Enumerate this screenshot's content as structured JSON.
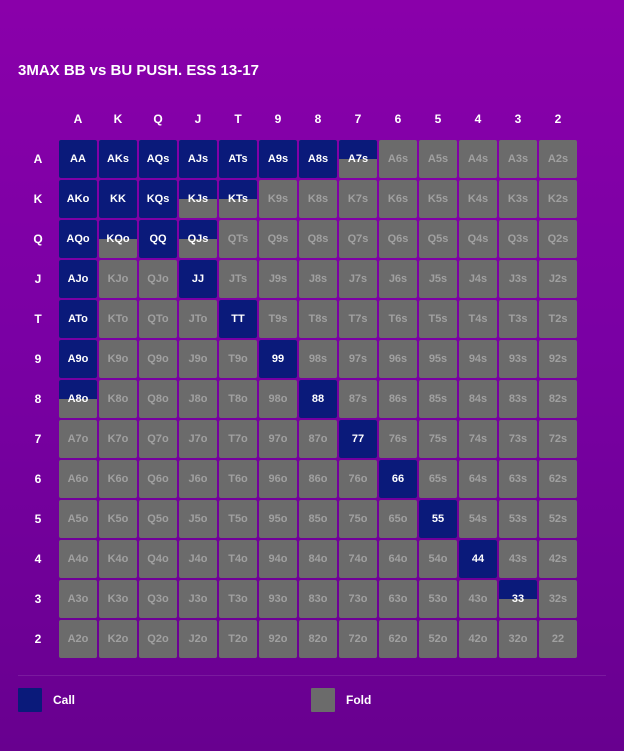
{
  "title": "3MAX BB vs BU PUSH. ESS 13-17",
  "colors": {
    "call": "#0a1a7a",
    "fold": "#6b6b6b",
    "fold_text": "#a0a0a0",
    "call_text": "#ffffff"
  },
  "chart_data": {
    "type": "heatmap",
    "ranks": [
      "A",
      "K",
      "Q",
      "J",
      "T",
      "9",
      "8",
      "7",
      "6",
      "5",
      "4",
      "3",
      "2"
    ],
    "cells": [
      [
        "AA",
        "AKs",
        "AQs",
        "AJs",
        "ATs",
        "A9s",
        "A8s",
        "A7s",
        "A6s",
        "A5s",
        "A4s",
        "A3s",
        "A2s"
      ],
      [
        "AKo",
        "KK",
        "KQs",
        "KJs",
        "KTs",
        "K9s",
        "K8s",
        "K7s",
        "K6s",
        "K5s",
        "K4s",
        "K3s",
        "K2s"
      ],
      [
        "AQo",
        "KQo",
        "QQ",
        "QJs",
        "QTs",
        "Q9s",
        "Q8s",
        "Q7s",
        "Q6s",
        "Q5s",
        "Q4s",
        "Q3s",
        "Q2s"
      ],
      [
        "AJo",
        "KJo",
        "QJo",
        "JJ",
        "JTs",
        "J9s",
        "J8s",
        "J7s",
        "J6s",
        "J5s",
        "J4s",
        "J3s",
        "J2s"
      ],
      [
        "ATo",
        "KTo",
        "QTo",
        "JTo",
        "TT",
        "T9s",
        "T8s",
        "T7s",
        "T6s",
        "T5s",
        "T4s",
        "T3s",
        "T2s"
      ],
      [
        "A9o",
        "K9o",
        "Q9o",
        "J9o",
        "T9o",
        "99",
        "98s",
        "97s",
        "96s",
        "95s",
        "94s",
        "93s",
        "92s"
      ],
      [
        "A8o",
        "K8o",
        "Q8o",
        "J8o",
        "T8o",
        "98o",
        "88",
        "87s",
        "86s",
        "85s",
        "84s",
        "83s",
        "82s"
      ],
      [
        "A7o",
        "K7o",
        "Q7o",
        "J7o",
        "T7o",
        "97o",
        "87o",
        "77",
        "76s",
        "75s",
        "74s",
        "73s",
        "72s"
      ],
      [
        "A6o",
        "K6o",
        "Q6o",
        "J6o",
        "T6o",
        "96o",
        "86o",
        "76o",
        "66",
        "65s",
        "64s",
        "63s",
        "62s"
      ],
      [
        "A5o",
        "K5o",
        "Q5o",
        "J5o",
        "T5o",
        "95o",
        "85o",
        "75o",
        "65o",
        "55",
        "54s",
        "53s",
        "52s"
      ],
      [
        "A4o",
        "K4o",
        "Q4o",
        "J4o",
        "T4o",
        "94o",
        "84o",
        "74o",
        "64o",
        "54o",
        "44",
        "43s",
        "42s"
      ],
      [
        "A3o",
        "K3o",
        "Q3o",
        "J3o",
        "T3o",
        "93o",
        "83o",
        "73o",
        "63o",
        "53o",
        "43o",
        "33",
        "32s"
      ],
      [
        "A2o",
        "K2o",
        "Q2o",
        "J2o",
        "T2o",
        "92o",
        "82o",
        "72o",
        "62o",
        "52o",
        "42o",
        "32o",
        "22"
      ]
    ],
    "call_frequency": [
      [
        1,
        1,
        1,
        1,
        1,
        1,
        1,
        0.5,
        0,
        0,
        0,
        0,
        0
      ],
      [
        1,
        1,
        1,
        0.5,
        0.5,
        0,
        0,
        0,
        0,
        0,
        0,
        0,
        0
      ],
      [
        1,
        0.5,
        1,
        0.5,
        0,
        0,
        0,
        0,
        0,
        0,
        0,
        0,
        0
      ],
      [
        1,
        0,
        0,
        1,
        0,
        0,
        0,
        0,
        0,
        0,
        0,
        0,
        0
      ],
      [
        1,
        0,
        0,
        0,
        1,
        0,
        0,
        0,
        0,
        0,
        0,
        0,
        0
      ],
      [
        1,
        0,
        0,
        0,
        0,
        1,
        0,
        0,
        0,
        0,
        0,
        0,
        0
      ],
      [
        0.5,
        0,
        0,
        0,
        0,
        0,
        1,
        0,
        0,
        0,
        0,
        0,
        0
      ],
      [
        0,
        0,
        0,
        0,
        0,
        0,
        0,
        1,
        0,
        0,
        0,
        0,
        0
      ],
      [
        0,
        0,
        0,
        0,
        0,
        0,
        0,
        0,
        1,
        0,
        0,
        0,
        0
      ],
      [
        0,
        0,
        0,
        0,
        0,
        0,
        0,
        0,
        0,
        1,
        0,
        0,
        0
      ],
      [
        0,
        0,
        0,
        0,
        0,
        0,
        0,
        0,
        0,
        0,
        1,
        0,
        0
      ],
      [
        0,
        0,
        0,
        0,
        0,
        0,
        0,
        0,
        0,
        0,
        0,
        0.5,
        0
      ],
      [
        0,
        0,
        0,
        0,
        0,
        0,
        0,
        0,
        0,
        0,
        0,
        0,
        0
      ]
    ],
    "legend": [
      {
        "label": "Call",
        "color": "#0a1a7a"
      },
      {
        "label": "Fold",
        "color": "#6b6b6b"
      }
    ],
    "legend_position": "bottom"
  }
}
